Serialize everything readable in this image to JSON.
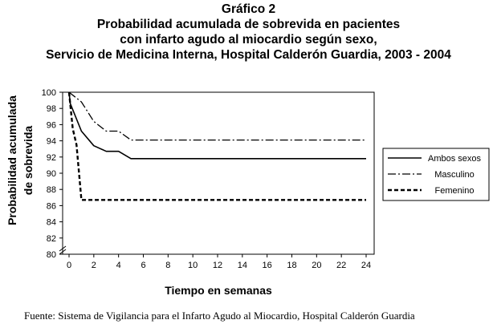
{
  "titles": [
    "Gráfico 2",
    "Probabilidad acumulada de sobrevida en pacientes",
    "con infarto agudo al miocardio según sexo,",
    "Servicio de Medicina Interna, Hospital Calderón Guardia, 2003 - 2004"
  ],
  "footer": "Fuente: Sistema de Vigilancia para el Infarto Agudo al Miocardio, Hospital Calderón Guardia",
  "chart_data": {
    "type": "line",
    "xlabel": "Tiempo en semanas",
    "ylabel_lines": [
      "Probabilidad acumulada",
      "de sobrevida"
    ],
    "xlim": [
      0,
      24
    ],
    "ylim": [
      80,
      100
    ],
    "x_ticks": [
      0,
      2,
      4,
      6,
      8,
      10,
      12,
      14,
      16,
      18,
      20,
      22,
      24
    ],
    "y_ticks": [
      80,
      82,
      84,
      86,
      88,
      90,
      92,
      94,
      96,
      98,
      100
    ],
    "y_axis_break": true,
    "grid": false,
    "legend_position": "right",
    "series": [
      {
        "name": "Ambos sexos",
        "style": "solid",
        "points": [
          [
            0,
            100
          ],
          [
            0.1,
            98.6
          ],
          [
            1,
            95.2
          ],
          [
            2,
            93.4
          ],
          [
            3,
            92.7
          ],
          [
            4,
            92.7
          ],
          [
            5,
            91.8
          ],
          [
            24,
            91.8
          ]
        ]
      },
      {
        "name": "Masculino",
        "style": "dashdot",
        "points": [
          [
            0,
            100
          ],
          [
            1,
            98.8
          ],
          [
            2,
            96.4
          ],
          [
            3,
            95.2
          ],
          [
            4,
            95.2
          ],
          [
            5,
            94.1
          ],
          [
            24,
            94.1
          ]
        ]
      },
      {
        "name": "Femenino",
        "style": "dashed",
        "points": [
          [
            0,
            100
          ],
          [
            0.3,
            95.5
          ],
          [
            0.6,
            93.5
          ],
          [
            1,
            86.7
          ],
          [
            24,
            86.7
          ]
        ]
      }
    ]
  }
}
